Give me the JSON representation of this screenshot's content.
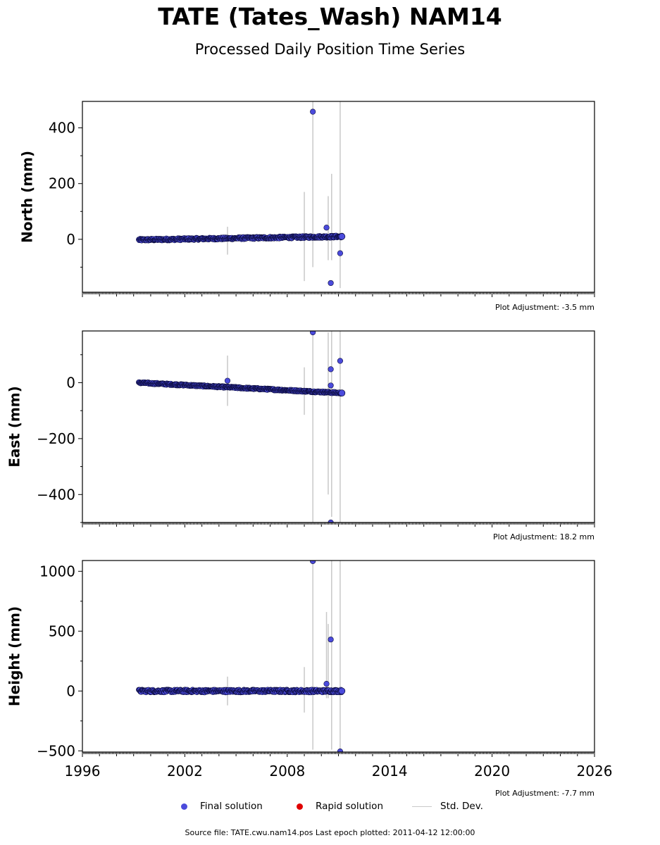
{
  "header": {
    "title": "TATE (Tates_Wash) NAM14",
    "subtitle": "Processed Daily Position Time Series"
  },
  "legend": {
    "final": "Final solution",
    "rapid": "Rapid solution",
    "std": "Std. Dev."
  },
  "footer": {
    "source": "Source file: TATE.cwu.nam14.pos  Last epoch plotted: 2011-04-12 12:00:00"
  },
  "colors": {
    "final": "#4b4bdc",
    "rapid": "#e00000",
    "std": "#c8c8c8"
  },
  "chart_data": [
    {
      "type": "scatter",
      "ylabel": "North (mm)",
      "xlim": [
        1996,
        2026
      ],
      "ylim": [
        -190,
        495
      ],
      "yticks": [
        0,
        200,
        400
      ],
      "adjustment": "Plot Adjustment: -3.5 mm",
      "trend": {
        "x": [
          1999.3,
          2011.2
        ],
        "y": [
          -2,
          10
        ],
        "noise": 4
      },
      "outliers": [
        {
          "x": 2009.5,
          "y": 458,
          "err": 0
        },
        {
          "x": 2010.3,
          "y": 42,
          "err": 80
        },
        {
          "x": 2010.55,
          "y": -157,
          "err": 0
        },
        {
          "x": 2011.1,
          "y": -50,
          "err": 0
        }
      ],
      "std_dev": [
        {
          "x": 2004.5,
          "y": -5,
          "err": 50
        },
        {
          "x": 2009.0,
          "y": 10,
          "err": 160
        },
        {
          "x": 2009.5,
          "y": 200,
          "err": 300
        },
        {
          "x": 2010.4,
          "y": 40,
          "err": 115
        },
        {
          "x": 2010.6,
          "y": 80,
          "err": 155
        },
        {
          "x": 2011.1,
          "y": 160,
          "err": 335
        }
      ]
    },
    {
      "type": "scatter",
      "ylabel": "East (mm)",
      "xlim": [
        1996,
        2026
      ],
      "ylim": [
        -500,
        185
      ],
      "yticks": [
        -400,
        -200,
        0
      ],
      "adjustment": "Plot Adjustment: 18.2 mm",
      "trend": {
        "x": [
          1999.3,
          2011.2
        ],
        "y": [
          0,
          -37
        ],
        "noise": 3
      },
      "outliers": [
        {
          "x": 2004.5,
          "y": 7,
          "err": 0
        },
        {
          "x": 2009.5,
          "y": 180,
          "err": 0
        },
        {
          "x": 2010.55,
          "y": 48,
          "err": 0
        },
        {
          "x": 2010.55,
          "y": -10,
          "err": 0
        },
        {
          "x": 2011.1,
          "y": 78,
          "err": 0
        },
        {
          "x": 2010.55,
          "y": -500,
          "err": 0
        }
      ],
      "std_dev": [
        {
          "x": 2004.5,
          "y": 7,
          "err": 90
        },
        {
          "x": 2009.0,
          "y": -30,
          "err": 85
        },
        {
          "x": 2009.5,
          "y": -160,
          "err": 340
        },
        {
          "x": 2010.4,
          "y": -110,
          "err": 290
        },
        {
          "x": 2010.6,
          "y": -140,
          "err": 340
        },
        {
          "x": 2011.1,
          "y": -160,
          "err": 345
        }
      ]
    },
    {
      "type": "scatter",
      "ylabel": "Height (mm)",
      "xlim": [
        1996,
        2026
      ],
      "ylim": [
        -510,
        1090
      ],
      "yticks": [
        -500,
        0,
        500,
        1000
      ],
      "xticks": [
        1996,
        2002,
        2008,
        2014,
        2020,
        2026
      ],
      "xticklabels": [
        "1996",
        "2002",
        "2008",
        "2014",
        "2020",
        "2026"
      ],
      "adjustment": "Plot Adjustment: -7.7 mm",
      "trend": {
        "x": [
          1999.3,
          2011.2
        ],
        "y": [
          0,
          0
        ],
        "noise": 12
      },
      "outliers": [
        {
          "x": 2009.5,
          "y": 1085,
          "err": 0
        },
        {
          "x": 2010.3,
          "y": 60,
          "err": 0
        },
        {
          "x": 2010.55,
          "y": 430,
          "err": 0
        },
        {
          "x": 2011.1,
          "y": -505,
          "err": 0
        }
      ],
      "std_dev": [
        {
          "x": 2004.5,
          "y": 0,
          "err": 120
        },
        {
          "x": 2009.0,
          "y": 10,
          "err": 190
        },
        {
          "x": 2009.5,
          "y": 300,
          "err": 790
        },
        {
          "x": 2010.3,
          "y": 300,
          "err": 360
        },
        {
          "x": 2010.4,
          "y": 250,
          "err": 310
        },
        {
          "x": 2010.6,
          "y": 300,
          "err": 790
        },
        {
          "x": 2011.1,
          "y": 300,
          "err": 790
        }
      ]
    }
  ]
}
